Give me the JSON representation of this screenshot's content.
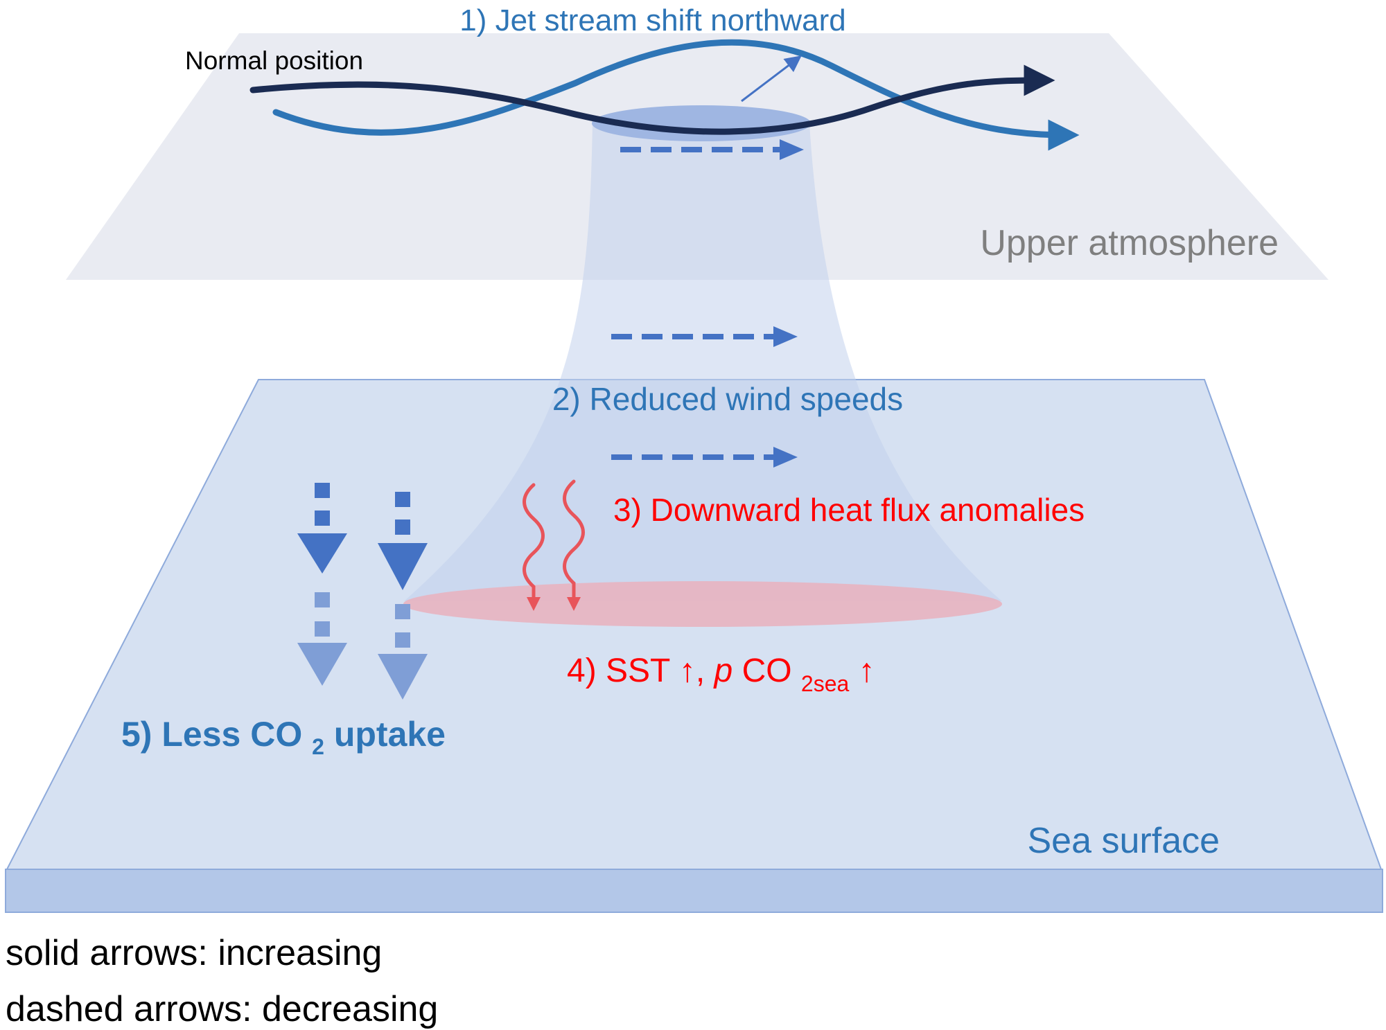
{
  "colors": {
    "background": "#ffffff",
    "upper_plane": "#e9ebf2",
    "sea_plane": "#d6e1f2",
    "sea_edge": "#b3c7e8",
    "sea_stroke": "#8eaadb",
    "funnel": "#c3d1ec",
    "jet_normal": "#1a2b52",
    "jet_shifted": "#2e75b6",
    "dashed_arrow": "#4472c4",
    "heat": "#e8545a",
    "warm_patch": "#e8b4c0",
    "blue_text": "#2e75b6",
    "red_text": "#ff0000",
    "gray_text": "#7f7f7f",
    "black_text": "#000000"
  },
  "labels": {
    "jet_shift": "1) Jet stream shift northward",
    "normal_position": "Normal position",
    "upper_atmosphere": "Upper atmosphere",
    "reduced_wind": "2) Reduced wind speeds",
    "heat_flux": "3) Downward heat flux anomalies",
    "sst_prefix": "4) SST ↑, ",
    "sst_p": "p",
    "sst_co": "CO",
    "sst_sub": "2sea",
    "sst_suffix": " ↑",
    "uptake_prefix": "5) Less CO",
    "uptake_sub": "2",
    "uptake_suffix": " uptake",
    "sea_surface": "Sea surface"
  },
  "legend": {
    "solid": "solid arrows: increasing",
    "dashed": "dashed arrows: decreasing"
  }
}
